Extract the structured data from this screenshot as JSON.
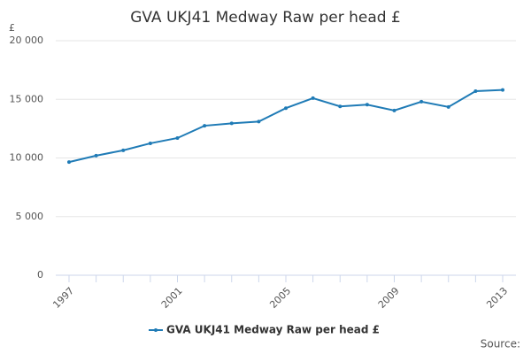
{
  "chart_data": {
    "type": "line",
    "title": "GVA UKJ41 Medway Raw per head £",
    "y_label": "£",
    "source": "Source:",
    "categories": [
      "1997",
      null,
      null,
      null,
      "2001",
      null,
      null,
      null,
      "2005",
      null,
      null,
      null,
      "2009",
      null,
      null,
      null,
      "2013"
    ],
    "series": [
      {
        "name": "GVA UKJ41 Medway Raw per head £",
        "color": "#1f7bb6",
        "values": [
          9650,
          10200,
          10650,
          11250,
          11700,
          12750,
          12950,
          13100,
          14250,
          15100,
          14400,
          14550,
          14050,
          14800,
          14350,
          15700,
          15800
        ]
      }
    ],
    "ylim": [
      0,
      20000
    ],
    "yticks": [
      0,
      {
        "value": 5000,
        "label": "5 000"
      },
      {
        "value": 10000,
        "label": "10 000"
      },
      {
        "value": 15000,
        "label": "15 000"
      },
      {
        "value": 20000,
        "label": "20 000"
      }
    ],
    "grid": true,
    "legend": "bottom"
  }
}
